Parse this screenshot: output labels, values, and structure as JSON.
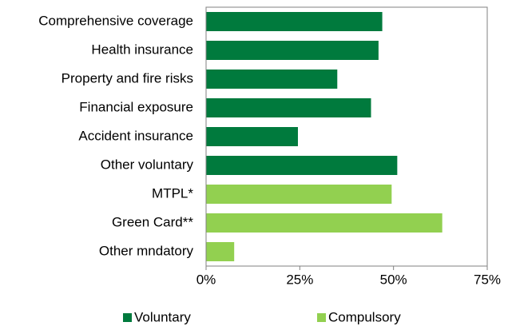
{
  "chart_data": {
    "type": "barh",
    "categories": [
      "Comprehensive coverage",
      "Health insurance",
      "Property and fire risks",
      "Financial exposure",
      "Accident insurance",
      "Other voluntary",
      "MTPL*",
      "Green Card**",
      "Other mndatory"
    ],
    "series": [
      {
        "name": "Voluntary",
        "color": "#007a3d",
        "values": [
          47,
          46,
          35,
          44,
          24.5,
          51,
          null,
          null,
          null
        ]
      },
      {
        "name": "Compulsory",
        "color": "#92d050",
        "values": [
          null,
          null,
          null,
          null,
          null,
          null,
          49.5,
          63,
          7.5
        ]
      }
    ],
    "xlim": [
      0,
      75
    ],
    "xticks": [
      {
        "value": 0,
        "label": "0%"
      },
      {
        "value": 25,
        "label": "25%"
      },
      {
        "value": 50,
        "label": "50%"
      },
      {
        "value": 75,
        "label": "75%"
      }
    ],
    "legend": "bottom"
  }
}
